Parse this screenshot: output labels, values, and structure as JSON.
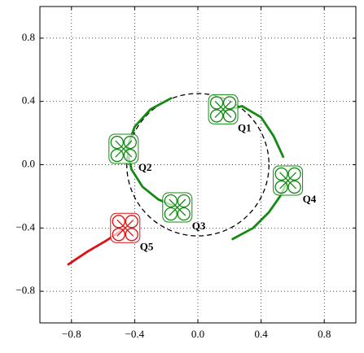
{
  "chart_data": {
    "type": "line",
    "xlim": [
      -1.0,
      1.0
    ],
    "ylim": [
      -1.0,
      1.0
    ],
    "xticks": [
      {
        "value": -0.8,
        "label": "−0.8"
      },
      {
        "value": -0.4,
        "label": "−0.4"
      },
      {
        "value": 0,
        "label": "0.0"
      },
      0.4,
      0.8
    ],
    "yticks": [
      {
        "value": -0.8,
        "label": "−0.8"
      },
      {
        "value": -0.4,
        "label": "−0.4"
      },
      {
        "value": 0,
        "label": "0.0"
      },
      0.4,
      0.8
    ],
    "grid": true,
    "circle": {
      "cx": 0,
      "cy": 0,
      "r": 0.45
    },
    "series": [
      {
        "color": "#138a13",
        "x": [
          0.16,
          0.28,
          0.4,
          0.48,
          0.54
        ],
        "y": [
          0.34,
          0.37,
          0.3,
          0.18,
          0.05
        ]
      },
      {
        "color": "#138a13",
        "x": [
          -0.17,
          -0.3,
          -0.4,
          -0.45
        ],
        "y": [
          0.42,
          0.35,
          0.24,
          0.1
        ]
      },
      {
        "color": "#138a13",
        "x": [
          -0.45,
          -0.42,
          -0.35,
          -0.25,
          -0.13
        ],
        "y": [
          0.1,
          -0.03,
          -0.14,
          -0.22,
          -0.27
        ]
      },
      {
        "color": "#138a13",
        "x": [
          0.22,
          0.35,
          0.45,
          0.52,
          0.57
        ],
        "y": [
          -0.47,
          -0.4,
          -0.3,
          -0.2,
          -0.1
        ]
      },
      {
        "color": "#e01010",
        "x": [
          -0.82,
          -0.7,
          -0.58,
          -0.46
        ],
        "y": [
          -0.63,
          -0.55,
          -0.48,
          -0.4
        ]
      }
    ],
    "quads": [
      {
        "label": "Q1",
        "x": 0.16,
        "y": 0.35,
        "color": "#138a13"
      },
      {
        "label": "Q2",
        "x": -0.47,
        "y": 0.1,
        "color": "#138a13"
      },
      {
        "label": "Q3",
        "x": -0.13,
        "y": -0.27,
        "color": "#138a13"
      },
      {
        "label": "Q4",
        "x": 0.57,
        "y": -0.1,
        "color": "#138a13"
      },
      {
        "label": "Q5",
        "x": -0.46,
        "y": -0.4,
        "color": "#e01010"
      }
    ]
  }
}
